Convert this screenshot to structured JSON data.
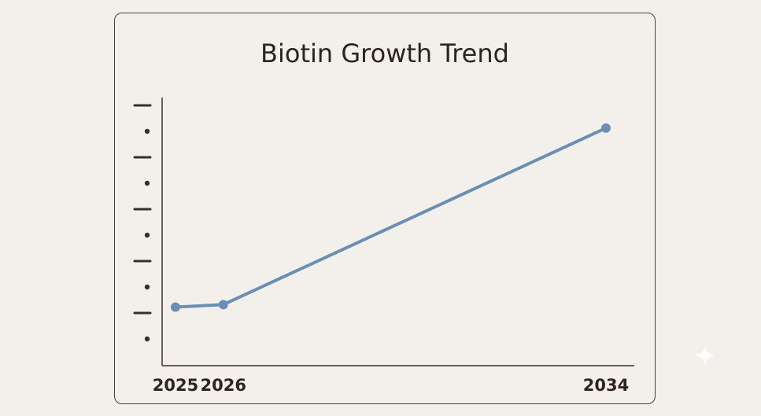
{
  "chart_data": {
    "type": "line",
    "title": "Biotin Growth Trend",
    "xlabel": "",
    "ylabel": "",
    "x": [
      2025,
      2026,
      2034
    ],
    "x_tick_labels": [
      "2025",
      "2026",
      "2034"
    ],
    "series": [
      {
        "values": [
          0.9,
          1.0,
          8.0
        ],
        "color": "#6b8fb3"
      }
    ],
    "ylim": [
      0,
      10
    ],
    "y_ticks_unlabeled": true,
    "grid": false,
    "legend": "none"
  },
  "colors": {
    "background": "#f3f0eb",
    "line": "#6b8fb3",
    "axis": "#3a2e2a",
    "text": "#2b2422"
  },
  "icons": {
    "corner": "sparkle-icon"
  }
}
